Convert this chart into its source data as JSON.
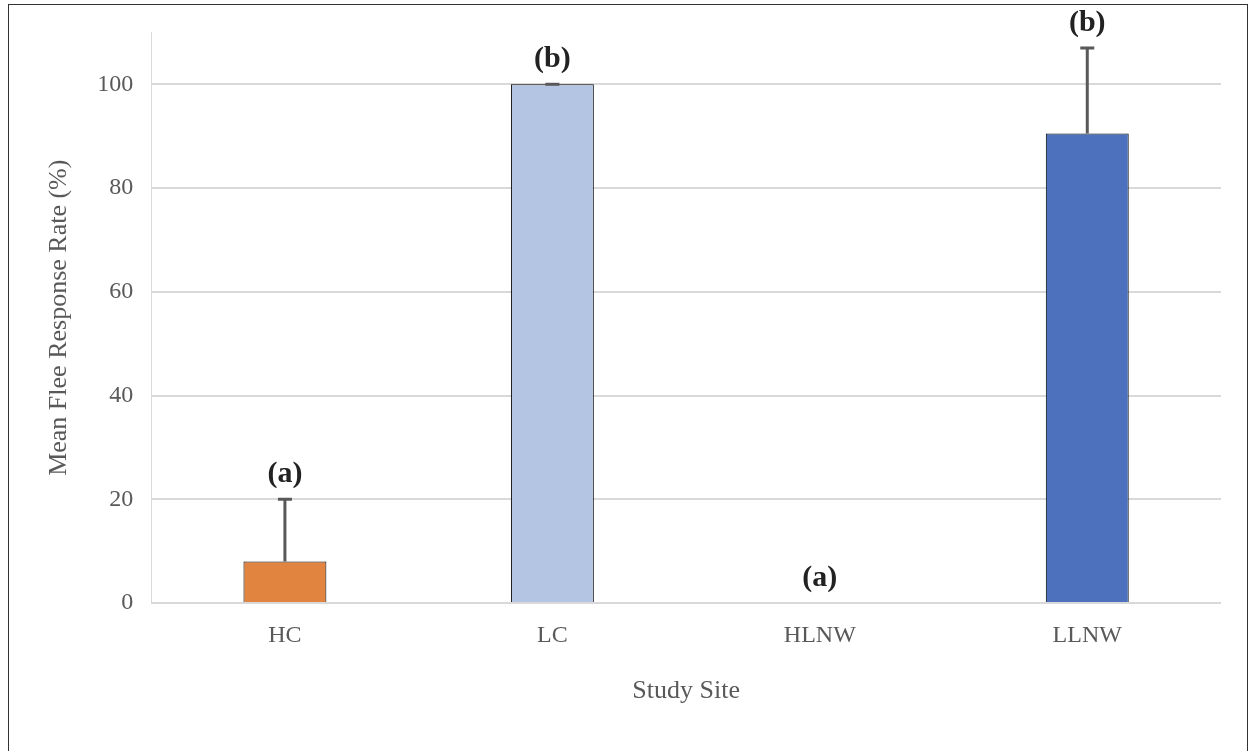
{
  "chart_data": {
    "type": "bar",
    "xlabel": "Study Site",
    "ylabel": "Mean Flee Response Rate (%)",
    "categories": [
      "HC",
      "LC",
      "HLNW",
      "LLNW"
    ],
    "values": [
      8,
      100,
      0,
      90.5
    ],
    "colors": [
      "#e0843f",
      "#b4c5e4",
      "#4e71be",
      "#4e71be"
    ],
    "errors": [
      [
        8,
        20
      ],
      [
        100,
        100
      ],
      null,
      [
        90.5,
        107
      ]
    ],
    "ylim": [
      0,
      110
    ],
    "yticks": [
      0,
      20,
      40,
      60,
      80,
      100
    ],
    "grid": "y",
    "legend": false,
    "annotations": [
      {
        "text": "(a)",
        "x": "HC",
        "y": 20
      },
      {
        "text": "(b)",
        "x": "LC",
        "y": 100
      },
      {
        "text": "(a)",
        "x": "HLNW",
        "y": 0
      },
      {
        "text": "(b)",
        "x": "LLNW",
        "y": 107
      }
    ]
  }
}
